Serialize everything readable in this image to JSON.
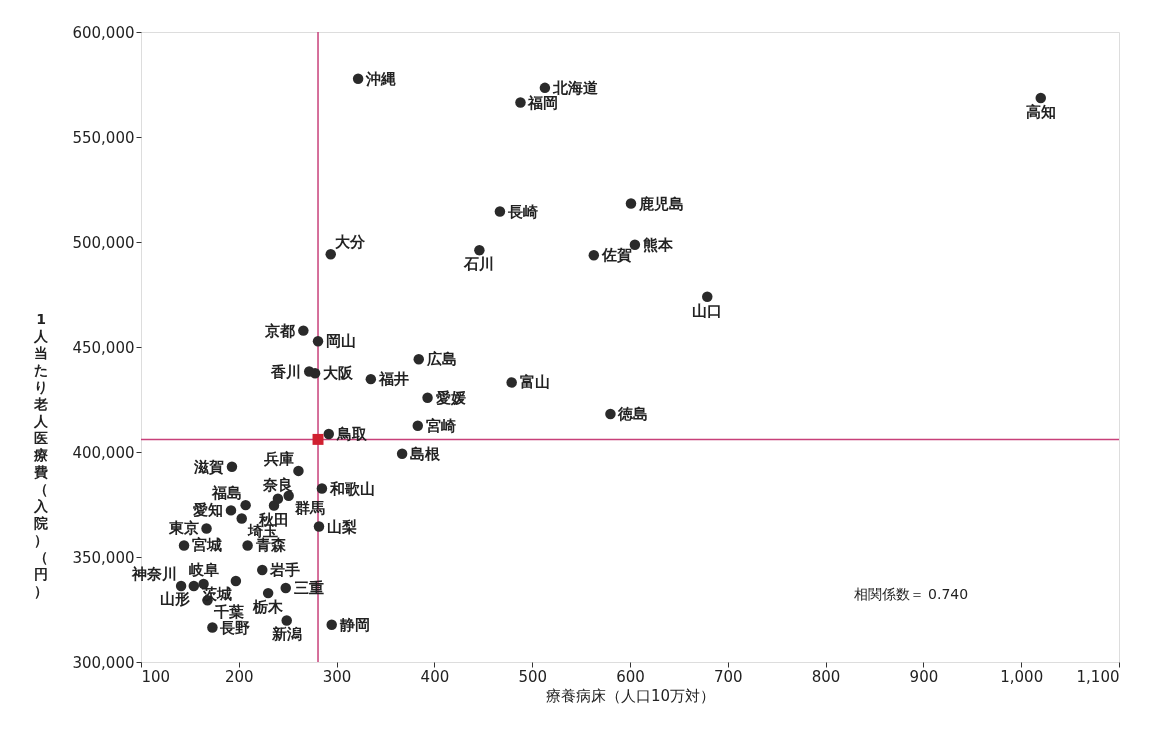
{
  "chart_data": {
    "type": "scatter",
    "xlabel": "療養病床（人口10万対）",
    "ylabel": "1人当たり老人医療費（入院）（円）",
    "xlim": [
      100,
      1100
    ],
    "xticks": [
      100,
      200,
      300,
      400,
      500,
      600,
      700,
      800,
      900,
      {
        "value": 1000,
        "label": "1,000"
      },
      {
        "value": 1100,
        "label": "1,100"
      }
    ],
    "ylim": [
      300000,
      600000
    ],
    "yticks": [
      {
        "value": 300000,
        "label": "300,000"
      },
      {
        "value": 350000,
        "label": "350,000"
      },
      {
        "value": 400000,
        "label": "400,000"
      },
      {
        "value": 450000,
        "label": "450,000"
      },
      {
        "value": 500000,
        "label": "500,000"
      },
      {
        "value": 550000,
        "label": "550,000"
      },
      {
        "value": 600000,
        "label": "600,000"
      }
    ],
    "grid": false,
    "marker": "circle",
    "series": [
      {
        "color": "#2a2a2a",
        "x": [
          513,
          209,
          224,
          144,
          236,
          154,
          207,
          197,
          230,
          251,
          203,
          168,
          167,
          141,
          249,
          479,
          446,
          335,
          282,
          173,
          164,
          295,
          192,
          248,
          193,
          266,
          278,
          261,
          240,
          285,
          292,
          367,
          281,
          384,
          679,
          580,
          272,
          393,
          1020,
          488,
          563,
          467,
          605,
          294,
          383,
          601,
          322
        ],
        "values": [
          573400,
          355500,
          343800,
          355500,
          374500,
          336200,
          374700,
          338600,
          332800,
          379200,
          368300,
          329400,
          363600,
          336200,
          319800,
          433100,
          496100,
          434700,
          364500,
          316400,
          337200,
          317700,
          372200,
          335200,
          393000,
          457800,
          437500,
          391000,
          377700,
          382600,
          408600,
          399200,
          452700,
          444200,
          473900,
          418100,
          438300,
          425800,
          568600,
          566400,
          493700,
          514500,
          498700,
          494200,
          412500,
          518300,
          577700
        ],
        "value_labels": [
          "北海道",
          "青森",
          "岩手",
          "宮城",
          "秋田",
          "山形",
          "福島",
          "茨城",
          "栃木",
          "群馬",
          "埼玉",
          "千葉",
          "東京",
          "神奈川",
          "新潟",
          "富山",
          "石川",
          "福井",
          "山梨",
          "長野",
          "岐阜",
          "静岡",
          "愛知",
          "三重",
          "滋賀",
          "京都",
          "大阪",
          "兵庫",
          "奈良",
          "和歌山",
          "鳥取",
          "島根",
          "岡山",
          "広島",
          "山口",
          "徳島",
          "香川",
          "愛媛",
          "高知",
          "福岡",
          "佐賀",
          "長崎",
          "熊本",
          "大分",
          "宮崎",
          "鹿児島",
          "沖縄"
        ]
      },
      {
        "color": "#d02030",
        "marker": "square",
        "x": [
          281
        ],
        "values": [
          406000
        ]
      }
    ],
    "ref_lines": [
      {
        "axis": "x",
        "value": 281,
        "color": "#c8407a"
      },
      {
        "axis": "y",
        "value": 406000,
        "color": "#c8407a"
      }
    ],
    "annotations": [
      "相関係数＝ 0.740"
    ]
  }
}
